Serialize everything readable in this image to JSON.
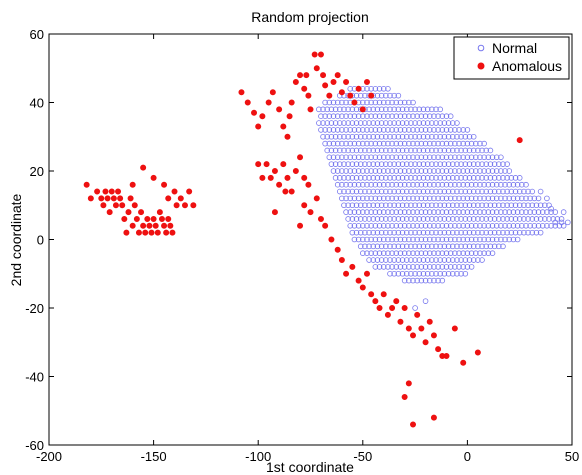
{
  "chart_data": {
    "type": "scatter",
    "title": "Random projection",
    "xlabel": "1st coordinate",
    "ylabel": "2nd coordinate",
    "xlim": [
      -200,
      50
    ],
    "ylim": [
      -60,
      60
    ],
    "xticks": [
      "-200",
      "-150",
      "-100",
      "-50",
      "0",
      "50"
    ],
    "yticks": [
      "60",
      "40",
      "20",
      "0",
      "-20",
      "-40",
      "-60"
    ],
    "grid": false,
    "legend_position": "top-right",
    "colors": {
      "normal": "#7777ee",
      "anomalous": "#ee1111"
    },
    "normal_region": {
      "description_polygon": [
        [
          -68,
          40
        ],
        [
          -55,
          45
        ],
        [
          -40,
          45
        ],
        [
          -25,
          40
        ],
        [
          -12,
          38
        ],
        [
          5,
          30
        ],
        [
          15,
          25
        ],
        [
          22,
          20
        ],
        [
          30,
          15
        ],
        [
          45,
          7
        ],
        [
          48,
          4
        ],
        [
          25,
          0
        ],
        [
          10,
          -5
        ],
        [
          0,
          -10
        ],
        [
          -15,
          -13
        ],
        [
          -30,
          -12
        ],
        [
          -45,
          -8
        ],
        [
          -55,
          0
        ],
        [
          -60,
          10
        ],
        [
          -65,
          20
        ],
        [
          -70,
          30
        ],
        [
          -72,
          38
        ]
      ],
      "grid_step_x": 2,
      "grid_step_y": 2
    },
    "series": [
      {
        "name": "Normal",
        "marker": "circle-open",
        "extra_points": [
          [
            42,
            5
          ],
          [
            45,
            5
          ],
          [
            48,
            5
          ],
          [
            46,
            8
          ],
          [
            35,
            14
          ],
          [
            38,
            12
          ],
          [
            40,
            9
          ],
          [
            -25,
            -20
          ],
          [
            -20,
            -18
          ]
        ]
      },
      {
        "name": "Anomalous",
        "marker": "circle-filled",
        "points": [
          [
            -182,
            16
          ],
          [
            -180,
            12
          ],
          [
            -177,
            14
          ],
          [
            -175,
            12
          ],
          [
            -174,
            10
          ],
          [
            -173,
            14
          ],
          [
            -172,
            12
          ],
          [
            -171,
            8
          ],
          [
            -170,
            14
          ],
          [
            -169,
            12
          ],
          [
            -168,
            10
          ],
          [
            -167,
            14
          ],
          [
            -166,
            12
          ],
          [
            -165,
            10
          ],
          [
            -164,
            6
          ],
          [
            -163,
            2
          ],
          [
            -162,
            8
          ],
          [
            -161,
            12
          ],
          [
            -160,
            4
          ],
          [
            -159,
            10
          ],
          [
            -158,
            6
          ],
          [
            -157,
            2
          ],
          [
            -156,
            8
          ],
          [
            -155,
            4
          ],
          [
            -154,
            2
          ],
          [
            -153,
            6
          ],
          [
            -152,
            4
          ],
          [
            -151,
            2
          ],
          [
            -150,
            6
          ],
          [
            -149,
            4
          ],
          [
            -148,
            2
          ],
          [
            -147,
            8
          ],
          [
            -146,
            6
          ],
          [
            -145,
            4
          ],
          [
            -144,
            2
          ],
          [
            -143,
            6
          ],
          [
            -142,
            4
          ],
          [
            -141,
            2
          ],
          [
            -139,
            10
          ],
          [
            -137,
            12
          ],
          [
            -135,
            10
          ],
          [
            -133,
            14
          ],
          [
            -131,
            10
          ],
          [
            -160,
            16
          ],
          [
            -155,
            21
          ],
          [
            -150,
            18
          ],
          [
            -145,
            16
          ],
          [
            -140,
            14
          ],
          [
            -143,
            12
          ],
          [
            -108,
            43
          ],
          [
            -105,
            40
          ],
          [
            -102,
            37
          ],
          [
            -100,
            33
          ],
          [
            -98,
            36
          ],
          [
            -95,
            40
          ],
          [
            -93,
            43
          ],
          [
            -90,
            38
          ],
          [
            -88,
            33
          ],
          [
            -86,
            30
          ],
          [
            -85,
            36
          ],
          [
            -84,
            40
          ],
          [
            -82,
            46
          ],
          [
            -80,
            48
          ],
          [
            -78,
            44
          ],
          [
            -77,
            48
          ],
          [
            -76,
            42
          ],
          [
            -75,
            38
          ],
          [
            -73,
            54
          ],
          [
            -72,
            50
          ],
          [
            -70,
            54
          ],
          [
            -69,
            48
          ],
          [
            -68,
            45
          ],
          [
            -66,
            42
          ],
          [
            -64,
            46
          ],
          [
            -62,
            48
          ],
          [
            -60,
            43
          ],
          [
            -58,
            46
          ],
          [
            -56,
            42
          ],
          [
            -54,
            40
          ],
          [
            -52,
            44
          ],
          [
            -50,
            38
          ],
          [
            -48,
            46
          ],
          [
            -46,
            42
          ],
          [
            -100,
            22
          ],
          [
            -98,
            18
          ],
          [
            -96,
            22
          ],
          [
            -94,
            18
          ],
          [
            -92,
            20
          ],
          [
            -90,
            16
          ],
          [
            -88,
            22
          ],
          [
            -86,
            18
          ],
          [
            -84,
            14
          ],
          [
            -82,
            20
          ],
          [
            -80,
            24
          ],
          [
            -78,
            18
          ],
          [
            -76,
            16
          ],
          [
            -92,
            8
          ],
          [
            -87,
            14
          ],
          [
            -80,
            4
          ],
          [
            -78,
            10
          ],
          [
            -75,
            8
          ],
          [
            -72,
            12
          ],
          [
            -70,
            6
          ],
          [
            -68,
            4
          ],
          [
            -65,
            0
          ],
          [
            -62,
            -3
          ],
          [
            -60,
            -6
          ],
          [
            -58,
            -10
          ],
          [
            -55,
            -8
          ],
          [
            -52,
            -12
          ],
          [
            -50,
            -14
          ],
          [
            -48,
            -10
          ],
          [
            -46,
            -16
          ],
          [
            -44,
            -18
          ],
          [
            -42,
            -20
          ],
          [
            -40,
            -16
          ],
          [
            -38,
            -22
          ],
          [
            -36,
            -20
          ],
          [
            -34,
            -18
          ],
          [
            -32,
            -24
          ],
          [
            -30,
            -20
          ],
          [
            -28,
            -26
          ],
          [
            -26,
            -28
          ],
          [
            -24,
            -22
          ],
          [
            -22,
            -26
          ],
          [
            -20,
            -30
          ],
          [
            -18,
            -24
          ],
          [
            -16,
            -28
          ],
          [
            -14,
            -32
          ],
          [
            -12,
            -34
          ],
          [
            -28,
            -42
          ],
          [
            -30,
            -46
          ],
          [
            -26,
            -54
          ],
          [
            -16,
            -52
          ],
          [
            -10,
            -34
          ],
          [
            -6,
            -26
          ],
          [
            -2,
            -36
          ],
          [
            5,
            -33
          ],
          [
            25,
            29
          ]
        ]
      }
    ]
  }
}
